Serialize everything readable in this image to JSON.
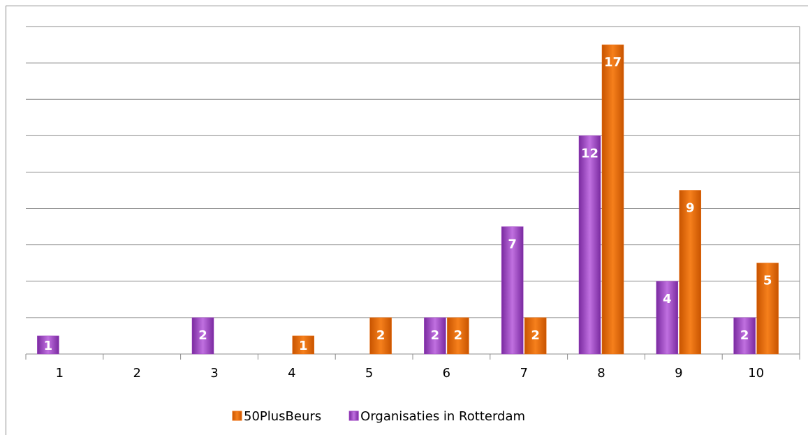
{
  "chart_data": {
    "type": "bar",
    "categories": [
      "1",
      "2",
      "3",
      "4",
      "5",
      "6",
      "7",
      "8",
      "9",
      "10"
    ],
    "series": [
      {
        "name": "Organisaties in Rotterdam",
        "color": "#9b3fc0",
        "values": [
          1,
          null,
          2,
          null,
          null,
          2,
          7,
          12,
          4,
          2
        ]
      },
      {
        "name": "50PlusBeurs",
        "color": "#ec6c0c",
        "values": [
          null,
          null,
          null,
          1,
          2,
          2,
          2,
          17,
          9,
          5
        ]
      }
    ],
    "ylim": [
      0,
      18
    ],
    "yticks": [
      0,
      2,
      4,
      6,
      8,
      10,
      12,
      14,
      16,
      18
    ],
    "grid": true
  }
}
